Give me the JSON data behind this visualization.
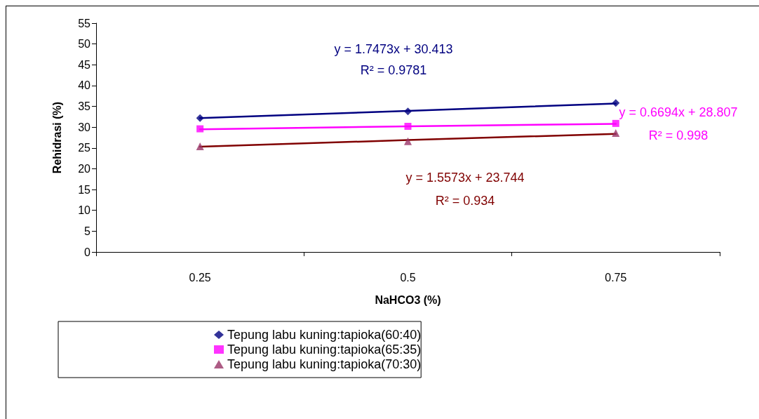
{
  "chart_data": {
    "type": "scatter",
    "xlabel": "NaHCO3 (%)",
    "ylabel": "Rehidrasi (%)",
    "categories": [
      "0.25",
      "0.5",
      "0.75"
    ],
    "ylim": [
      0,
      55
    ],
    "yticks": [
      0,
      5,
      10,
      15,
      20,
      25,
      30,
      35,
      40,
      45,
      50,
      55
    ],
    "grid": false,
    "legend": "bottom",
    "series": [
      {
        "name": "Tepung labu kuning:tapioka(60:40)",
        "color": "#000080",
        "marker": "diamond",
        "values": [
          32.2,
          33.8,
          35.8
        ]
      },
      {
        "name": "Tepung labu kuning:tapioka(65:35)",
        "color": "#ff00ff",
        "marker": "square",
        "values": [
          29.6,
          30.2,
          30.9
        ]
      },
      {
        "name": "Tepung labu kuning:tapioka(70:30)",
        "color": "#993366",
        "marker": "triangle",
        "values": [
          25.4,
          26.6,
          28.6
        ]
      },
      {
        "type": "line",
        "color": "#000080",
        "marker": "none",
        "line_style": "solid",
        "values": [
          32.2,
          33.9,
          35.7
        ]
      },
      {
        "type": "line",
        "color": "#ff00ff",
        "marker": "none",
        "line_style": "solid",
        "values": [
          29.5,
          30.2,
          30.8
        ]
      },
      {
        "type": "line",
        "color": "#800000",
        "marker": "none",
        "line_style": "solid",
        "values": [
          25.3,
          26.9,
          28.4
        ]
      }
    ],
    "annotations": [
      "y = 1.7473x + 30.413",
      "R² = 0.9781",
      "y = 0.6694x + 28.807",
      "R² = 0.998",
      "y = 1.5573x + 23.744",
      "R² = 0.934"
    ]
  }
}
